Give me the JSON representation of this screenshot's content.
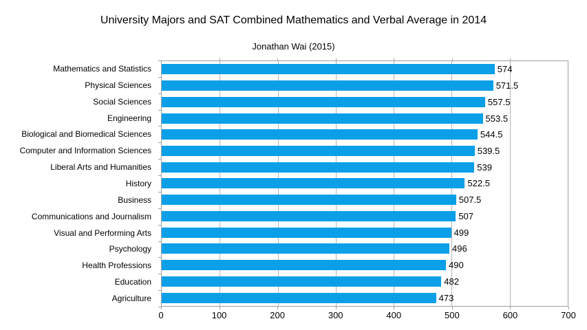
{
  "chart_data": {
    "type": "bar",
    "orientation": "horizontal",
    "title": "University Majors and SAT Combined Mathematics and Verbal Average in 2014",
    "subtitle": "Jonathan Wai (2015)",
    "categories": [
      "Mathematics and Statistics",
      "Physical Sciences",
      "Social Sciences",
      "Engineering",
      "Biological and Biomedical Sciences",
      "Computer and Information Sciences",
      "Liberal Arts and Humanities",
      "History",
      "Business",
      "Communications and Journalism",
      "Visual and Performing Arts",
      "Psychology",
      "Health Professions",
      "Education",
      "Agriculture"
    ],
    "values": [
      574,
      571.5,
      557.5,
      553.5,
      544.5,
      539.5,
      539,
      522.5,
      507.5,
      507,
      499,
      496,
      490,
      482,
      473
    ],
    "value_labels": [
      "574",
      "571.5",
      "557.5",
      "553.5",
      "544.5",
      "539.5",
      "539",
      "522.5",
      "507.5",
      "507",
      "499",
      "496",
      "490",
      "482",
      "473"
    ],
    "xlabel": "",
    "ylabel": "",
    "xlim": [
      0,
      700
    ],
    "xticks": [
      0,
      100,
      200,
      300,
      400,
      500,
      600,
      700
    ],
    "grid": true,
    "legend": "none",
    "colors": {
      "bar": "#0b9fe8",
      "axis_line": "#9e9e9e",
      "gridline": "#b4b4b4",
      "text": "#000000",
      "background": "#ffffff"
    }
  }
}
